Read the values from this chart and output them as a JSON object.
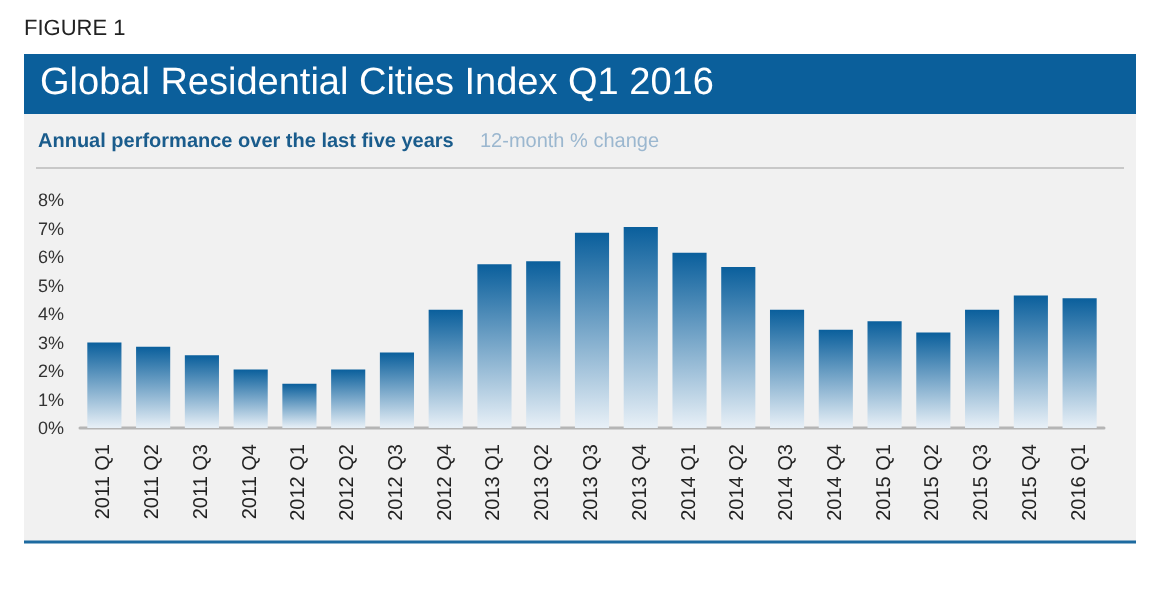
{
  "chart_data": {
    "type": "bar",
    "title": "Global Residential Cities Index Q1 2016",
    "subtitle": "Annual performance over the last five years",
    "ylabel": "12-month % change",
    "annotations": [
      "FIGURE 1"
    ],
    "categories": [
      "2011 Q1",
      "2011 Q2",
      "2011 Q3",
      "2011 Q4",
      "2012 Q1",
      "2012 Q2",
      "2012 Q3",
      "2012 Q4",
      "2013 Q1",
      "2013 Q2",
      "2013 Q3",
      "2013 Q4",
      "2014 Q1",
      "2014 Q2",
      "2014 Q3",
      "2014 Q4",
      "2015 Q1",
      "2015 Q2",
      "2015 Q3",
      "2015 Q4",
      "2016 Q1"
    ],
    "values": [
      3.0,
      2.85,
      2.55,
      2.05,
      1.55,
      2.05,
      2.65,
      4.15,
      5.75,
      5.85,
      6.85,
      7.05,
      6.15,
      5.65,
      4.15,
      3.45,
      3.75,
      3.35,
      4.15,
      4.65,
      4.55
    ],
    "color": "#0a5f9c",
    "ylim": [
      0,
      8
    ],
    "yticks": [
      {
        "value": 0,
        "label": "0%"
      },
      {
        "value": 1,
        "label": "1%"
      },
      {
        "value": 2,
        "label": "2%"
      },
      {
        "value": 3,
        "label": "3%"
      },
      {
        "value": 4,
        "label": "4%"
      },
      {
        "value": 5,
        "label": "5%"
      },
      {
        "value": 6,
        "label": "6%"
      },
      {
        "value": 7,
        "label": "7%"
      },
      {
        "value": 8,
        "label": "8%"
      }
    ],
    "grid": false
  }
}
